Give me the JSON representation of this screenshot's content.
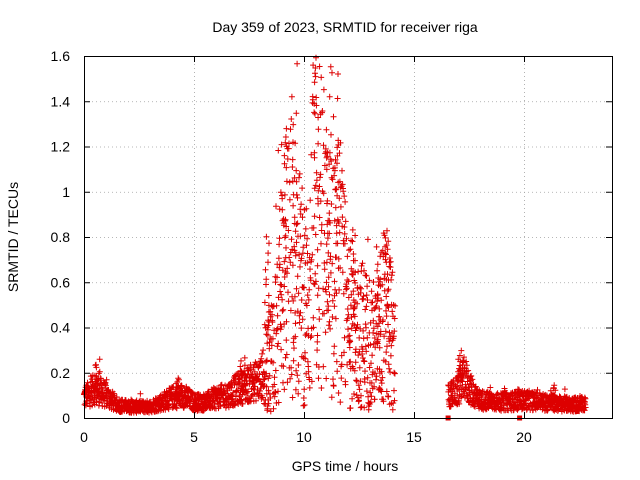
{
  "chart_data": {
    "type": "scatter",
    "title": "Day 359 of 2023, SRMTID for receiver riga",
    "xlabel": "GPS time / hours",
    "ylabel": "SRMTID / TECUs",
    "xlim": [
      0,
      24
    ],
    "ylim": [
      0,
      1.6
    ],
    "xticks": [
      0,
      5,
      10,
      15,
      20
    ],
    "xtick_labels": [
      "0",
      "5",
      "10",
      "15",
      "20"
    ],
    "yticks": [
      0,
      0.2,
      0.4,
      0.6,
      0.8,
      1,
      1.2,
      1.4,
      1.6
    ],
    "ytick_labels": [
      "0",
      "0.2",
      "0.4",
      "0.6",
      "0.8",
      "1",
      "1.2",
      "1.4",
      "1.6"
    ],
    "grid": true,
    "marker": "+",
    "color": "#dd0000",
    "gaps": [
      [
        14.15,
        16.55
      ]
    ],
    "zero_markers": [
      16.55,
      19.8
    ],
    "series": [
      {
        "name": "SRMTID",
        "envelope": [
          {
            "x": 0.0,
            "y": 0.09
          },
          {
            "x": 0.5,
            "y": 0.13
          },
          {
            "x": 1.0,
            "y": 0.1
          },
          {
            "x": 1.5,
            "y": 0.06
          },
          {
            "x": 2.0,
            "y": 0.05
          },
          {
            "x": 2.5,
            "y": 0.05
          },
          {
            "x": 3.0,
            "y": 0.05
          },
          {
            "x": 3.5,
            "y": 0.07
          },
          {
            "x": 4.0,
            "y": 0.09
          },
          {
            "x": 4.5,
            "y": 0.1
          },
          {
            "x": 5.0,
            "y": 0.07
          },
          {
            "x": 5.5,
            "y": 0.07
          },
          {
            "x": 6.0,
            "y": 0.09
          },
          {
            "x": 6.5,
            "y": 0.1
          },
          {
            "x": 7.0,
            "y": 0.13
          },
          {
            "x": 7.5,
            "y": 0.15
          },
          {
            "x": 8.0,
            "y": 0.17
          },
          {
            "x": 8.3,
            "y": 0.22
          },
          {
            "x": 8.6,
            "y": 0.32
          },
          {
            "x": 9.0,
            "y": 0.55
          },
          {
            "x": 9.3,
            "y": 0.75
          },
          {
            "x": 9.6,
            "y": 0.7
          },
          {
            "x": 9.9,
            "y": 0.5
          },
          {
            "x": 10.2,
            "y": 0.5
          },
          {
            "x": 10.5,
            "y": 0.9
          },
          {
            "x": 10.8,
            "y": 0.85
          },
          {
            "x": 11.1,
            "y": 0.65
          },
          {
            "x": 11.4,
            "y": 0.75
          },
          {
            "x": 11.7,
            "y": 0.6
          },
          {
            "x": 12.0,
            "y": 0.4
          },
          {
            "x": 12.5,
            "y": 0.38
          },
          {
            "x": 13.0,
            "y": 0.35
          },
          {
            "x": 13.3,
            "y": 0.3
          },
          {
            "x": 13.6,
            "y": 0.45
          },
          {
            "x": 13.9,
            "y": 0.4
          },
          {
            "x": 14.15,
            "y": 0.3
          },
          {
            "x": 16.6,
            "y": 0.1
          },
          {
            "x": 17.0,
            "y": 0.12
          },
          {
            "x": 17.3,
            "y": 0.18
          },
          {
            "x": 17.6,
            "y": 0.12
          },
          {
            "x": 18.0,
            "y": 0.08
          },
          {
            "x": 19.0,
            "y": 0.07
          },
          {
            "x": 20.0,
            "y": 0.08
          },
          {
            "x": 21.0,
            "y": 0.07
          },
          {
            "x": 22.0,
            "y": 0.06
          },
          {
            "x": 22.8,
            "y": 0.06
          }
        ],
        "peaks": [
          {
            "x": 0.6,
            "y": 0.26
          },
          {
            "x": 4.3,
            "y": 0.18
          },
          {
            "x": 7.2,
            "y": 0.27
          },
          {
            "x": 8.3,
            "y": 0.81
          },
          {
            "x": 9.1,
            "y": 1.28
          },
          {
            "x": 9.6,
            "y": 1.15
          },
          {
            "x": 10.6,
            "y": 1.49
          },
          {
            "x": 11.1,
            "y": 0.95
          },
          {
            "x": 11.5,
            "y": 1.21
          },
          {
            "x": 12.2,
            "y": 0.82
          },
          {
            "x": 13.4,
            "y": 0.76
          },
          {
            "x": 13.8,
            "y": 0.84
          },
          {
            "x": 17.1,
            "y": 0.3
          },
          {
            "x": 21.3,
            "y": 0.15
          }
        ],
        "sample_count": 2600
      }
    ]
  }
}
